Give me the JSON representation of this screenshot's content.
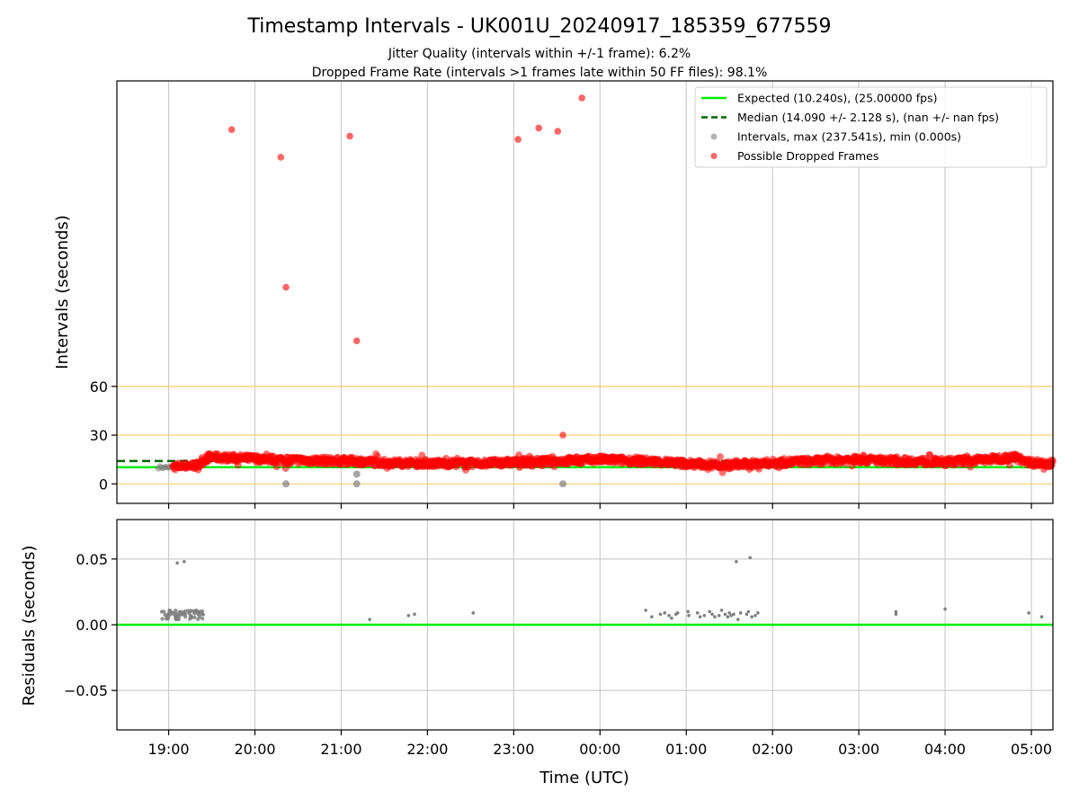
{
  "chart_data": {
    "type": "scatter",
    "title": "Timestamp Intervals - UK001U_20240917_185359_677559",
    "subtitle_lines": [
      "Jitter Quality (intervals within +/-1 frame): 6.2%",
      "Dropped Frame Rate (intervals >1 frames late within 50 FF files): 98.1%"
    ],
    "xlabel": "Time (UTC)",
    "x_range_hours": [
      18.4,
      29.25
    ],
    "x_ticks": [
      {
        "value": 19,
        "label": "19:00"
      },
      {
        "value": 20,
        "label": "20:00"
      },
      {
        "value": 21,
        "label": "21:00"
      },
      {
        "value": 22,
        "label": "22:00"
      },
      {
        "value": 23,
        "label": "23:00"
      },
      {
        "value": 24,
        "label": "00:00"
      },
      {
        "value": 25,
        "label": "01:00"
      },
      {
        "value": 26,
        "label": "02:00"
      },
      {
        "value": 27,
        "label": "03:00"
      },
      {
        "value": 28,
        "label": "04:00"
      },
      {
        "value": 29,
        "label": "05:00"
      }
    ],
    "colors": {
      "expected": "#00ee00",
      "median": "#006400",
      "intervals": "#808080",
      "dropped": "#ff0000",
      "reference_lines": "#ffcc66",
      "grid": "#cccccc"
    },
    "top": {
      "ylabel": "Intervals (seconds)",
      "y_range": [
        -12,
        248
      ],
      "y_ticks": [
        0,
        30,
        60
      ],
      "reference_lines": [
        0,
        30,
        60
      ],
      "expected_value": 10.24,
      "median_value": 14.09,
      "legend_position": "upper right",
      "legend": [
        {
          "label": "Expected (10.240s), (25.00000 fps)",
          "kind": "solid-line"
        },
        {
          "label": "Median (14.090 +/- 2.128 s), (nan +/- nan fps)",
          "kind": "dashed-line"
        },
        {
          "label": "Intervals, max (237.541s), min (0.000s)",
          "kind": "gray-dot"
        },
        {
          "label": "Possible Dropped Frames",
          "kind": "red-dot"
        }
      ],
      "dropped_outliers": [
        {
          "x": 19.73,
          "y": 218
        },
        {
          "x": 20.3,
          "y": 201
        },
        {
          "x": 20.36,
          "y": 121
        },
        {
          "x": 21.1,
          "y": 214
        },
        {
          "x": 21.18,
          "y": 88
        },
        {
          "x": 23.05,
          "y": 212
        },
        {
          "x": 23.29,
          "y": 219
        },
        {
          "x": 23.51,
          "y": 217
        },
        {
          "x": 23.79,
          "y": 237.5
        },
        {
          "x": 23.33,
          "y": 11
        },
        {
          "x": 23.57,
          "y": 30
        }
      ],
      "interval_outliers": [
        {
          "x": 20.36,
          "y": 0
        },
        {
          "x": 21.18,
          "y": 0
        },
        {
          "x": 21.18,
          "y": 6
        },
        {
          "x": 23.57,
          "y": 0
        }
      ],
      "band_profile": [
        {
          "x": 18.9,
          "y": 10.2
        },
        {
          "x": 19.1,
          "y": 10.8
        },
        {
          "x": 19.35,
          "y": 11.5
        },
        {
          "x": 19.45,
          "y": 16.5
        },
        {
          "x": 20.0,
          "y": 15.5
        },
        {
          "x": 20.5,
          "y": 14.5
        },
        {
          "x": 21.2,
          "y": 14.0
        },
        {
          "x": 21.5,
          "y": 13.0
        },
        {
          "x": 22.5,
          "y": 12.5
        },
        {
          "x": 23.5,
          "y": 14.0
        },
        {
          "x": 24.0,
          "y": 15.0
        },
        {
          "x": 24.5,
          "y": 14.0
        },
        {
          "x": 25.0,
          "y": 12.5
        },
        {
          "x": 25.5,
          "y": 11.5
        },
        {
          "x": 26.0,
          "y": 13.0
        },
        {
          "x": 26.5,
          "y": 14.0
        },
        {
          "x": 27.0,
          "y": 15.0
        },
        {
          "x": 27.5,
          "y": 14.0
        },
        {
          "x": 28.0,
          "y": 13.5
        },
        {
          "x": 28.5,
          "y": 15.0
        },
        {
          "x": 28.8,
          "y": 16.5
        },
        {
          "x": 29.0,
          "y": 13.0
        },
        {
          "x": 29.25,
          "y": 13.0
        }
      ]
    },
    "bottom": {
      "ylabel": "Residuals (seconds)",
      "y_range": [
        -0.08,
        0.08
      ],
      "y_ticks": [
        {
          "value": 0.05,
          "label": "0.05"
        },
        {
          "value": 0.0,
          "label": "0.00"
        },
        {
          "value": -0.05,
          "label": "−0.05"
        }
      ],
      "expected_value": 0.0,
      "points": [
        {
          "x": 19.1,
          "y": 0.047
        },
        {
          "x": 19.18,
          "y": 0.048
        },
        {
          "x": 21.33,
          "y": 0.004
        },
        {
          "x": 21.78,
          "y": 0.007
        },
        {
          "x": 21.85,
          "y": 0.008
        },
        {
          "x": 22.53,
          "y": 0.009
        },
        {
          "x": 24.53,
          "y": 0.011
        },
        {
          "x": 24.6,
          "y": 0.006
        },
        {
          "x": 24.7,
          "y": 0.008
        },
        {
          "x": 24.75,
          "y": 0.009
        },
        {
          "x": 24.8,
          "y": 0.007
        },
        {
          "x": 24.83,
          "y": 0.005
        },
        {
          "x": 24.88,
          "y": 0.008
        },
        {
          "x": 24.9,
          "y": 0.009
        },
        {
          "x": 25.02,
          "y": 0.01
        },
        {
          "x": 25.03,
          "y": 0.007
        },
        {
          "x": 25.13,
          "y": 0.009
        },
        {
          "x": 25.16,
          "y": 0.006
        },
        {
          "x": 25.21,
          "y": 0.007
        },
        {
          "x": 25.27,
          "y": 0.01
        },
        {
          "x": 25.3,
          "y": 0.008
        },
        {
          "x": 25.33,
          "y": 0.006
        },
        {
          "x": 25.38,
          "y": 0.007
        },
        {
          "x": 25.41,
          "y": 0.011
        },
        {
          "x": 25.45,
          "y": 0.008
        },
        {
          "x": 25.48,
          "y": 0.006
        },
        {
          "x": 25.5,
          "y": 0.009
        },
        {
          "x": 25.52,
          "y": 0.007
        },
        {
          "x": 25.55,
          "y": 0.008
        },
        {
          "x": 25.58,
          "y": 0.048
        },
        {
          "x": 25.6,
          "y": 0.004
        },
        {
          "x": 25.63,
          "y": 0.009
        },
        {
          "x": 25.7,
          "y": 0.008
        },
        {
          "x": 25.72,
          "y": 0.01
        },
        {
          "x": 25.74,
          "y": 0.051
        },
        {
          "x": 25.76,
          "y": 0.006
        },
        {
          "x": 25.8,
          "y": 0.007
        },
        {
          "x": 25.83,
          "y": 0.009
        },
        {
          "x": 27.43,
          "y": 0.008
        },
        {
          "x": 27.43,
          "y": 0.01
        },
        {
          "x": 28.0,
          "y": 0.012
        },
        {
          "x": 28.97,
          "y": 0.009
        },
        {
          "x": 29.12,
          "y": 0.006
        }
      ],
      "cluster": {
        "x_start": 18.92,
        "x_end": 19.4,
        "y_min": 0.004,
        "y_max": 0.011
      }
    }
  }
}
